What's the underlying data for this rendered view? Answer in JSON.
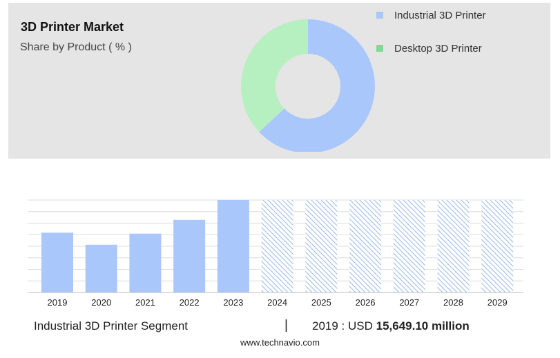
{
  "title": "3D Printer Market",
  "subtitle": "Share by Product ( % )",
  "legend": [
    {
      "label": "Industrial 3D Printer",
      "color": "#a9c7fa"
    },
    {
      "label": "Desktop 3D Printer",
      "color": "#7ddc93"
    }
  ],
  "colors": {
    "panel_bg": "#e5e5e5",
    "industrial": "#a9c7fa",
    "desktop": "#b7f0c0",
    "bar": "#a9c7fa",
    "hatch": "#9ebde8"
  },
  "footer": {
    "segment_label": "Industrial 3D Printer Segment",
    "separator": "|",
    "year_label": "2019 : USD",
    "value": "15,649.10 million"
  },
  "source": "www.technavio.com",
  "chart_data": [
    {
      "type": "pie",
      "title": "3D Printer Market",
      "subtitle": "Share by Product ( % )",
      "labels": [
        "Industrial 3D Printer",
        "Desktop 3D Printer"
      ],
      "values": [
        63,
        37
      ],
      "legend_position": "top-right"
    },
    {
      "type": "bar",
      "categories": [
        "2019",
        "2020",
        "2021",
        "2022",
        "2023",
        "2024",
        "2025",
        "2026",
        "2027",
        "2028",
        "2029"
      ],
      "series": [
        {
          "name": "Industrial 3D Printer Segment",
          "values": [
            15649.1,
            12500,
            15400,
            19000,
            24200,
            null,
            null,
            null,
            null,
            null,
            null
          ]
        }
      ],
      "forecast_categories": [
        "2024",
        "2025",
        "2026",
        "2027",
        "2028",
        "2029"
      ],
      "ylim": [
        0,
        24200
      ],
      "grid": true
    }
  ]
}
